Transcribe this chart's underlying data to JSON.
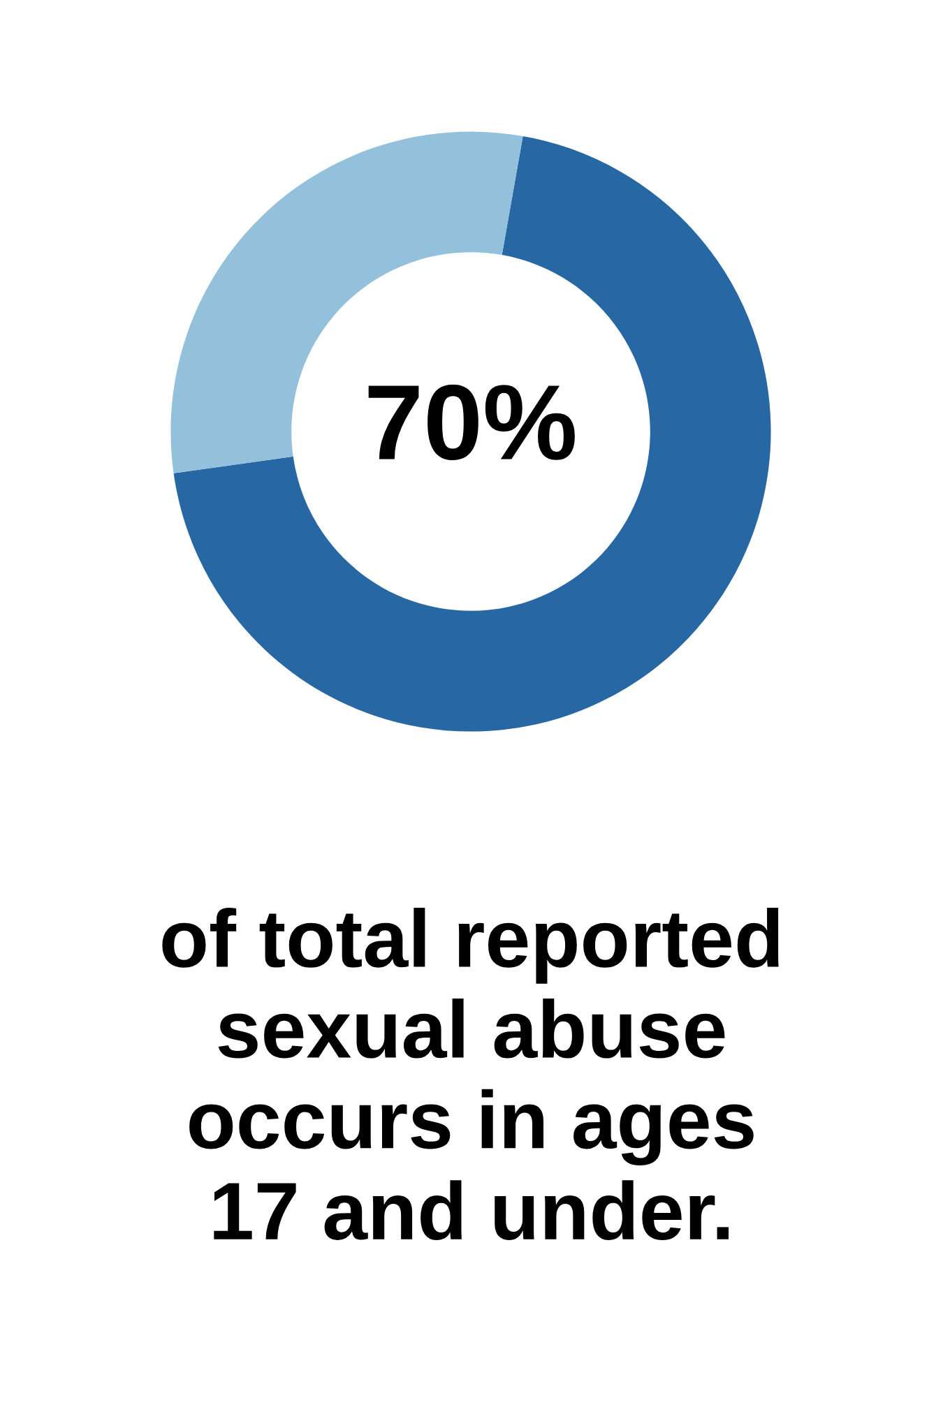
{
  "chart_data": {
    "type": "donut",
    "categories": [
      null,
      null
    ],
    "values": [
      70,
      30
    ],
    "colors": [
      "#2767a3",
      "#93c1db"
    ],
    "annotations": [
      "70%",
      "of total reported\nsexual abuse\noccurs in ages\n17 and under."
    ]
  }
}
